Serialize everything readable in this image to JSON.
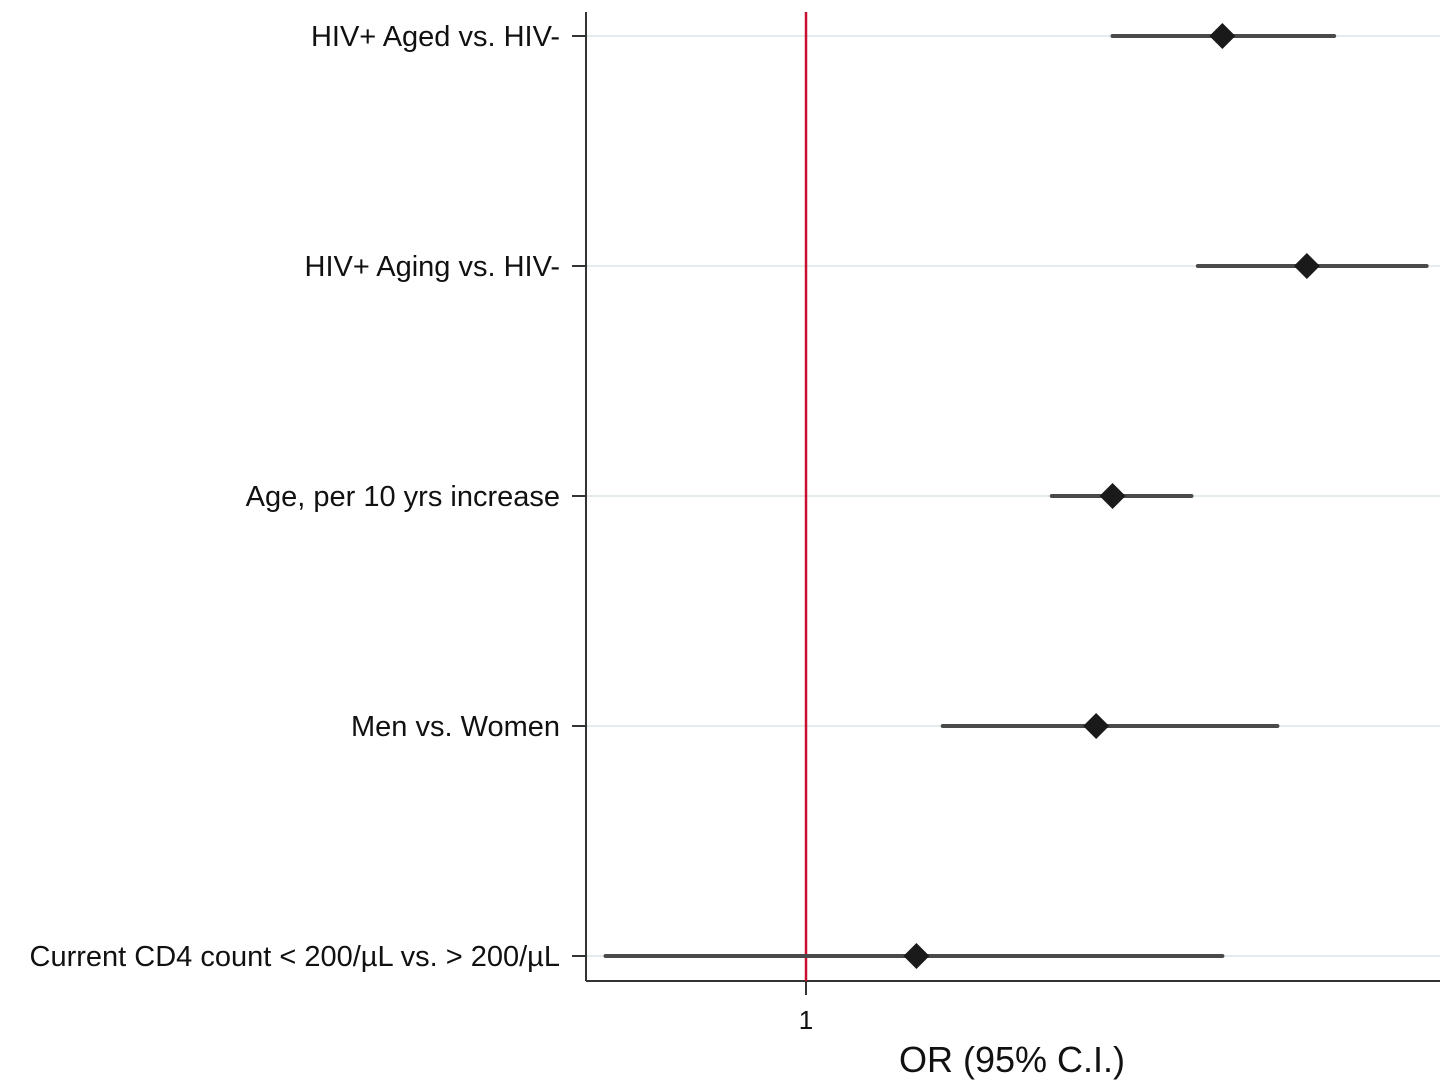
{
  "chart_data": {
    "type": "forest",
    "xlabel": "OR (95% C.I.)",
    "ylabel": "",
    "title": "",
    "xscale": "log",
    "xlim": [
      0.55,
      5.6
    ],
    "xticks": [
      1
    ],
    "reference_line": 1,
    "reference_color": "#c8102e",
    "marker": "diamond",
    "marker_color": "#1a1a1a",
    "ci_color": "#4a4a4a",
    "grid": "horizontal",
    "categories": [
      "HIV+ Aged vs. HIV-",
      "HIV+ Aging vs. HIV-",
      "Age, per 10 yrs increase",
      "Men vs. Women",
      "Current CD4 count < 200/µL vs. > 200/µL"
    ],
    "estimates": [
      {
        "or": 3.1,
        "lower": 2.3,
        "upper": 4.2
      },
      {
        "or": 3.9,
        "lower": 2.9,
        "upper": 5.4
      },
      {
        "or": 2.3,
        "lower": 1.95,
        "upper": 2.85
      },
      {
        "or": 2.2,
        "lower": 1.45,
        "upper": 3.6
      },
      {
        "or": 1.35,
        "lower": 0.58,
        "upper": 3.1
      }
    ]
  }
}
